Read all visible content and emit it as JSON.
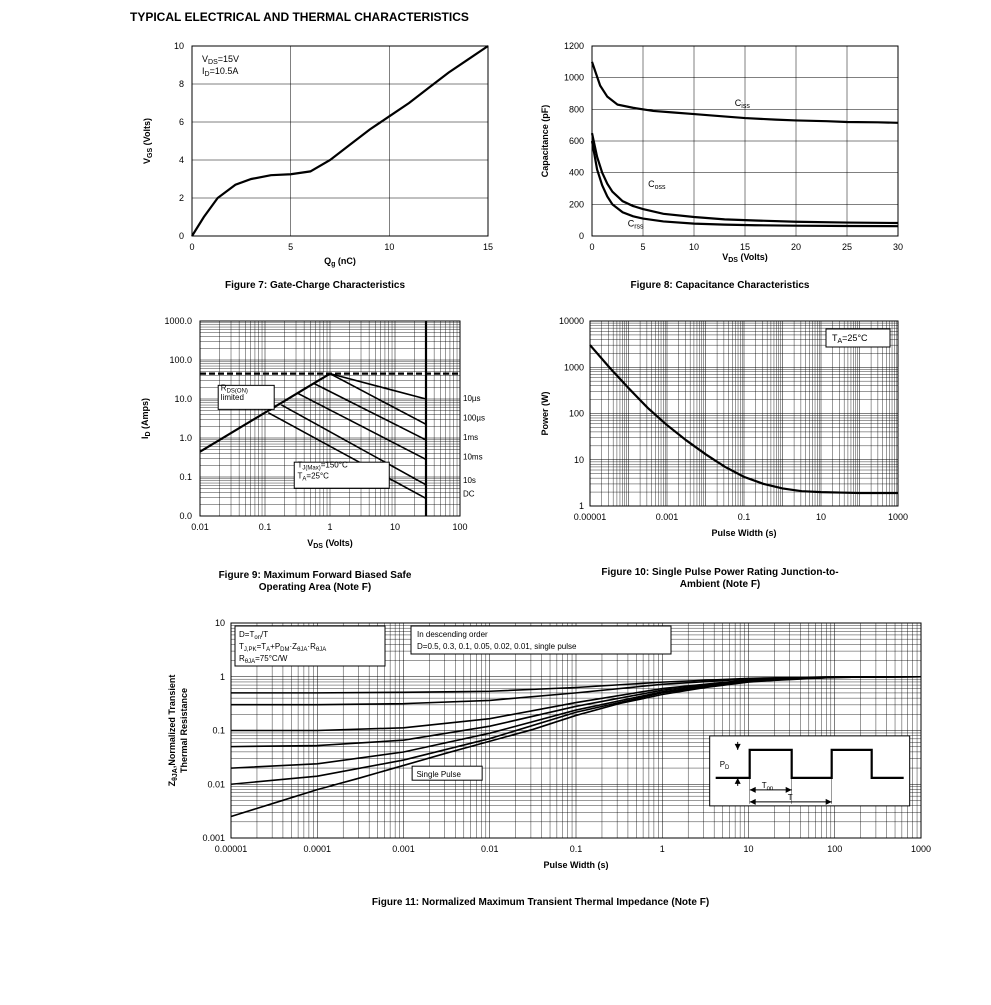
{
  "section_title": "TYPICAL ELECTRICAL AND THERMAL CHARACTERISTICS",
  "fig7": {
    "type": "line",
    "caption": "Figure 7: Gate-Charge Characteristics",
    "xlabel": "Q",
    "xlabel_sub": "g",
    "xlabel_unit": " (nC)",
    "ylabel": "V",
    "ylabel_sub": "GS",
    "ylabel_unit": " (Volts)",
    "xlim": [
      0,
      15
    ],
    "ylim": [
      0,
      10
    ],
    "xticks": [
      0,
      5,
      10,
      15
    ],
    "yticks": [
      0,
      2,
      4,
      6,
      8,
      10
    ],
    "annotation_lines": [
      "V",
      "=15V",
      "I",
      "=10.5A"
    ],
    "annotation_l1_main": "V",
    "annotation_l1_sub": "DS",
    "annotation_l1_rest": "=15V",
    "annotation_l2_main": "I",
    "annotation_l2_sub": "D",
    "annotation_l2_rest": "=10.5A",
    "series_color": "#000000",
    "background_color": "#ffffff",
    "line_width": 2.2,
    "data": [
      [
        0,
        0
      ],
      [
        0.6,
        1.0
      ],
      [
        1.3,
        2.0
      ],
      [
        2.2,
        2.7
      ],
      [
        3.0,
        3.0
      ],
      [
        4.0,
        3.2
      ],
      [
        5.0,
        3.25
      ],
      [
        6.0,
        3.4
      ],
      [
        7.0,
        4.0
      ],
      [
        8.0,
        4.8
      ],
      [
        9.0,
        5.6
      ],
      [
        10.0,
        6.3
      ],
      [
        11.0,
        7.0
      ],
      [
        12.0,
        7.8
      ],
      [
        13.0,
        8.6
      ],
      [
        14.0,
        9.3
      ],
      [
        15.0,
        10.0
      ]
    ]
  },
  "fig8": {
    "type": "line",
    "caption": "Figure 8: Capacitance Characteristics",
    "xlabel": "V",
    "xlabel_sub": "DS",
    "xlabel_unit": " (Volts)",
    "ylabel": "Capacitance (pF)",
    "xlim": [
      0,
      30
    ],
    "ylim": [
      0,
      1200
    ],
    "xticks": [
      0,
      5,
      10,
      15,
      20,
      25,
      30
    ],
    "yticks": [
      0,
      200,
      400,
      600,
      800,
      1000,
      1200
    ],
    "series_color": "#000000",
    "background_color": "#ffffff",
    "line_width": 2.2,
    "labels": {
      "ciss": "C",
      "ciss_sub": "iss",
      "coss": "C",
      "coss_sub": "oss",
      "crss": "C",
      "crss_sub": "rss"
    },
    "ciss": [
      [
        0,
        1100
      ],
      [
        0.8,
        950
      ],
      [
        1.5,
        880
      ],
      [
        2.5,
        830
      ],
      [
        4,
        810
      ],
      [
        6,
        790
      ],
      [
        8,
        780
      ],
      [
        10,
        770
      ],
      [
        12,
        760
      ],
      [
        15,
        745
      ],
      [
        18,
        735
      ],
      [
        20,
        730
      ],
      [
        23,
        725
      ],
      [
        25,
        720
      ],
      [
        28,
        718
      ],
      [
        30,
        715
      ]
    ],
    "coss": [
      [
        0,
        650
      ],
      [
        0.5,
        500
      ],
      [
        1,
        400
      ],
      [
        1.5,
        330
      ],
      [
        2,
        280
      ],
      [
        3,
        220
      ],
      [
        4,
        190
      ],
      [
        5,
        170
      ],
      [
        7,
        140
      ],
      [
        10,
        120
      ],
      [
        13,
        105
      ],
      [
        16,
        98
      ],
      [
        20,
        90
      ],
      [
        25,
        85
      ],
      [
        30,
        82
      ]
    ],
    "crss": [
      [
        0,
        600
      ],
      [
        0.5,
        420
      ],
      [
        1,
        320
      ],
      [
        1.5,
        250
      ],
      [
        2,
        200
      ],
      [
        3,
        150
      ],
      [
        4,
        125
      ],
      [
        5,
        110
      ],
      [
        7,
        92
      ],
      [
        10,
        78
      ],
      [
        13,
        72
      ],
      [
        16,
        68
      ],
      [
        20,
        65
      ],
      [
        25,
        63
      ],
      [
        30,
        62
      ]
    ]
  },
  "fig9": {
    "type": "line-loglog",
    "caption_l1": "Figure 9: Maximum Forward Biased Safe",
    "caption_l2": "Operating Area (Note F)",
    "xlabel": "V",
    "xlabel_sub": "DS",
    "xlabel_unit": " (Volts)",
    "ylabel": "I",
    "ylabel_sub": "D",
    "ylabel_unit": " (Amps)",
    "xlim_exp": [
      -2,
      2
    ],
    "ylim_exp": [
      -2,
      3
    ],
    "xticks": [
      "0.01",
      "0.1",
      "1",
      "10",
      "100"
    ],
    "yticks": [
      "0.0",
      "0.1",
      "1.0",
      "10.0",
      "100.0",
      "1000.0"
    ],
    "series_color": "#000000",
    "background_color": "#ffffff",
    "rds_label_main": "R",
    "rds_label_sub": "DS(ON)",
    "rds_label_l2": "limited",
    "tj_label": "T",
    "tj_sub": "J(Max)",
    "tj_rest": "=150°C",
    "ta_label": "T",
    "ta_sub": "A",
    "ta_rest": "=25°C",
    "pulse_labels": [
      "10µs",
      "100µs",
      "1ms",
      "10ms",
      "10s",
      "DC"
    ],
    "up_line": [
      [
        -2,
        -0.35
      ],
      [
        -0.6,
        1.05
      ],
      [
        0,
        1.65
      ]
    ],
    "limit_line_y": 1.65,
    "lines": {
      "10us": [
        [
          0,
          1.65
        ],
        [
          1.477,
          1.0
        ]
      ],
      "100us": [
        [
          0,
          1.65
        ],
        [
          1.477,
          0.35
        ]
      ],
      "1ms": [
        [
          -0.25,
          1.4
        ],
        [
          1.477,
          -0.05
        ]
      ],
      "10ms": [
        [
          -0.5,
          1.15
        ],
        [
          1.477,
          -0.55
        ]
      ],
      "10s": [
        [
          -0.75,
          0.85
        ],
        [
          1.477,
          -1.2
        ]
      ],
      "dc": [
        [
          -0.95,
          0.65
        ],
        [
          1.477,
          -1.55
        ]
      ]
    },
    "vline_x": 1.477
  },
  "fig10": {
    "type": "line-loglog",
    "caption_l1": "Figure 10: Single Pulse Power Rating Junction-to-",
    "caption_l2": "Ambient (Note F)",
    "xlabel": "Pulse Width (s)",
    "ylabel": "Power (W)",
    "xlim_exp": [
      -5,
      3
    ],
    "ylim_exp": [
      0,
      4
    ],
    "xticks": [
      "0.00001",
      "0.001",
      "0.1",
      "10",
      "1000"
    ],
    "yticks": [
      "1",
      "10",
      "100",
      "1000",
      "10000"
    ],
    "series_color": "#000000",
    "background_color": "#ffffff",
    "annotation": "T",
    "annotation_sub": "A",
    "annotation_rest": "=25°C",
    "data": [
      [
        -5,
        3.48
      ],
      [
        -4.5,
        3.0
      ],
      [
        -4,
        2.55
      ],
      [
        -3.5,
        2.12
      ],
      [
        -3,
        1.75
      ],
      [
        -2.5,
        1.42
      ],
      [
        -2,
        1.12
      ],
      [
        -1.5,
        0.85
      ],
      [
        -1,
        0.63
      ],
      [
        -0.5,
        0.48
      ],
      [
        0,
        0.38
      ],
      [
        0.5,
        0.32
      ],
      [
        1,
        0.3
      ],
      [
        1.5,
        0.29
      ],
      [
        2,
        0.28
      ],
      [
        2.5,
        0.28
      ],
      [
        3,
        0.28
      ]
    ]
  },
  "fig11": {
    "type": "line-loglog",
    "caption": "Figure 11: Normalized Maximum Transient Thermal Impedance (Note F)",
    "xlabel": "Pulse Width (s)",
    "ylabel_l1": "Z",
    "ylabel_l1_sub": "θJA",
    "ylabel_l1_rest": ",Normalized Transient",
    "ylabel_l2": "Thermal Resistance",
    "xlim_exp": [
      -5,
      3
    ],
    "ylim_exp": [
      -3,
      1
    ],
    "xticks": [
      "0.00001",
      "0.0001",
      "0.001",
      "0.01",
      "0.1",
      "1",
      "10",
      "100",
      "1000"
    ],
    "yticks": [
      "0.001",
      "0.01",
      "0.1",
      "1",
      "10"
    ],
    "series_color": "#000000",
    "background_color": "#ffffff",
    "box_l1_a": "D=T",
    "box_l1_a_sub": "on",
    "box_l1_a_rest": "/T",
    "box_l2_a": "T",
    "box_l2_a_sub": "J,PK",
    "box_l2_b": "=T",
    "box_l2_b_sub": "A",
    "box_l2_c": "+P",
    "box_l2_c_sub": "DM",
    "box_l2_d": "·Z",
    "box_l2_d_sub": "θJA",
    "box_l2_e": "·R",
    "box_l2_e_sub": "θJA",
    "box_l3_a": "R",
    "box_l3_a_sub": "θJA",
    "box_l3_rest": "=75°C/W",
    "order_l1": "In descending order",
    "order_l2": "D=0.5, 0.3, 0.1, 0.05, 0.02, 0.01, single pulse",
    "single_pulse_label": "Single Pulse",
    "inset": {
      "pd": "P",
      "pd_sub": "D",
      "ton": "T",
      "ton_sub": "on",
      "t": "T"
    },
    "curves": {
      "d05": [
        [
          -5,
          -0.3
        ],
        [
          -4,
          -0.3
        ],
        [
          -3,
          -0.29
        ],
        [
          -2,
          -0.27
        ],
        [
          -1,
          -0.2
        ],
        [
          0,
          -0.1
        ],
        [
          1,
          -0.03
        ],
        [
          2,
          0.0
        ],
        [
          3,
          0.0
        ]
      ],
      "d03": [
        [
          -5,
          -0.52
        ],
        [
          -4,
          -0.52
        ],
        [
          -3,
          -0.5
        ],
        [
          -2,
          -0.44
        ],
        [
          -1,
          -0.3
        ],
        [
          0,
          -0.14
        ],
        [
          1,
          -0.04
        ],
        [
          2,
          0.0
        ],
        [
          3,
          0.0
        ]
      ],
      "d01": [
        [
          -5,
          -1.0
        ],
        [
          -4,
          -1.0
        ],
        [
          -3,
          -0.95
        ],
        [
          -2,
          -0.78
        ],
        [
          -1,
          -0.48
        ],
        [
          0,
          -0.22
        ],
        [
          1,
          -0.06
        ],
        [
          2,
          -0.01
        ],
        [
          3,
          0.0
        ]
      ],
      "d005": [
        [
          -5,
          -1.3
        ],
        [
          -4,
          -1.28
        ],
        [
          -3,
          -1.18
        ],
        [
          -2,
          -0.92
        ],
        [
          -1,
          -0.55
        ],
        [
          0,
          -0.25
        ],
        [
          1,
          -0.07
        ],
        [
          2,
          -0.01
        ],
        [
          3,
          0.0
        ]
      ],
      "d002": [
        [
          -5,
          -1.7
        ],
        [
          -4,
          -1.62
        ],
        [
          -3,
          -1.4
        ],
        [
          -2,
          -1.05
        ],
        [
          -1,
          -0.62
        ],
        [
          0,
          -0.28
        ],
        [
          1,
          -0.08
        ],
        [
          2,
          -0.01
        ],
        [
          3,
          0.0
        ]
      ],
      "d001": [
        [
          -5,
          -2.0
        ],
        [
          -4,
          -1.85
        ],
        [
          -3,
          -1.55
        ],
        [
          -2,
          -1.15
        ],
        [
          -1,
          -0.66
        ],
        [
          0,
          -0.3
        ],
        [
          1,
          -0.09
        ],
        [
          2,
          -0.01
        ],
        [
          3,
          0.0
        ]
      ],
      "sp": [
        [
          -5,
          -2.6
        ],
        [
          -4.5,
          -2.35
        ],
        [
          -4,
          -2.1
        ],
        [
          -3.5,
          -1.88
        ],
        [
          -3,
          -1.65
        ],
        [
          -2.5,
          -1.42
        ],
        [
          -2,
          -1.2
        ],
        [
          -1.5,
          -0.98
        ],
        [
          -1,
          -0.72
        ],
        [
          -0.5,
          -0.5
        ],
        [
          0,
          -0.33
        ],
        [
          0.5,
          -0.2
        ],
        [
          1,
          -0.1
        ],
        [
          1.5,
          -0.04
        ],
        [
          2,
          -0.01
        ],
        [
          2.5,
          0.0
        ],
        [
          3,
          0.0
        ]
      ]
    }
  }
}
